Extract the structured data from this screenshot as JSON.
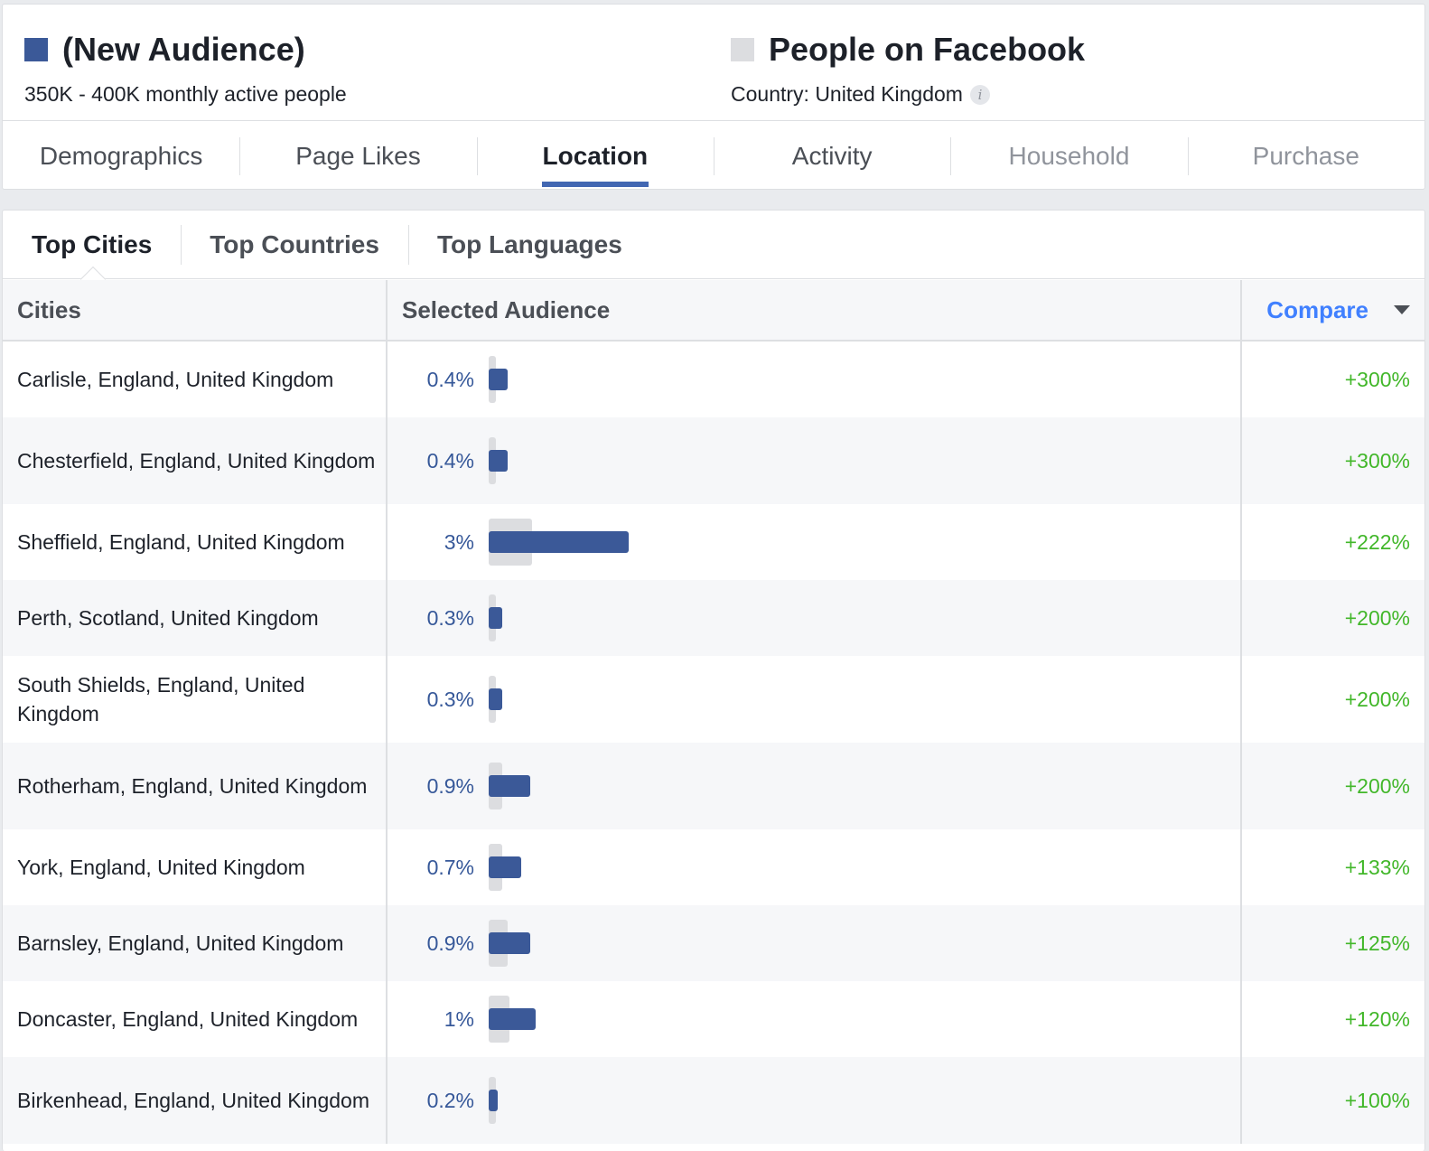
{
  "audience": {
    "title": "(New Audience)",
    "subtitle": "350K - 400K monthly active people",
    "color": "#3b5998"
  },
  "baseline": {
    "title": "People on Facebook",
    "subtitle": "Country: United Kingdom",
    "info_icon": "info-icon",
    "color": "#dcdde0"
  },
  "tabs": [
    {
      "label": "Demographics",
      "state": "normal"
    },
    {
      "label": "Page Likes",
      "state": "normal"
    },
    {
      "label": "Location",
      "state": "active"
    },
    {
      "label": "Activity",
      "state": "normal"
    },
    {
      "label": "Household",
      "state": "disabled"
    },
    {
      "label": "Purchase",
      "state": "disabled"
    }
  ],
  "subtabs": [
    {
      "label": "Top Cities",
      "active": true
    },
    {
      "label": "Top Countries",
      "active": false
    },
    {
      "label": "Top Languages",
      "active": false
    }
  ],
  "table": {
    "headers": {
      "city": "Cities",
      "audience": "Selected Audience",
      "compare": "Compare"
    },
    "rows": [
      {
        "city": "Carlisle, England, United Kingdom",
        "pct": "0.4%",
        "selected": 0.4,
        "baseline": 0.1,
        "compare": "+300%"
      },
      {
        "city": "Chesterfield, England, United Kingdom",
        "pct": "0.4%",
        "selected": 0.4,
        "baseline": 0.1,
        "compare": "+300%"
      },
      {
        "city": "Sheffield, England, United Kingdom",
        "pct": "3%",
        "selected": 3.0,
        "baseline": 0.93,
        "compare": "+222%"
      },
      {
        "city": "Perth, Scotland, United Kingdom",
        "pct": "0.3%",
        "selected": 0.3,
        "baseline": 0.1,
        "compare": "+200%"
      },
      {
        "city": "South Shields, England, United Kingdom",
        "pct": "0.3%",
        "selected": 0.3,
        "baseline": 0.1,
        "compare": "+200%"
      },
      {
        "city": "Rotherham, England, United Kingdom",
        "pct": "0.9%",
        "selected": 0.9,
        "baseline": 0.3,
        "compare": "+200%"
      },
      {
        "city": "York, England, United Kingdom",
        "pct": "0.7%",
        "selected": 0.7,
        "baseline": 0.3,
        "compare": "+133%"
      },
      {
        "city": "Barnsley, England, United Kingdom",
        "pct": "0.9%",
        "selected": 0.9,
        "baseline": 0.4,
        "compare": "+125%"
      },
      {
        "city": "Doncaster, England, United Kingdom",
        "pct": "1%",
        "selected": 1.0,
        "baseline": 0.45,
        "compare": "+120%"
      },
      {
        "city": "Birkenhead, England, United Kingdom",
        "pct": "0.2%",
        "selected": 0.2,
        "baseline": 0.1,
        "compare": "+100%"
      }
    ]
  }
}
